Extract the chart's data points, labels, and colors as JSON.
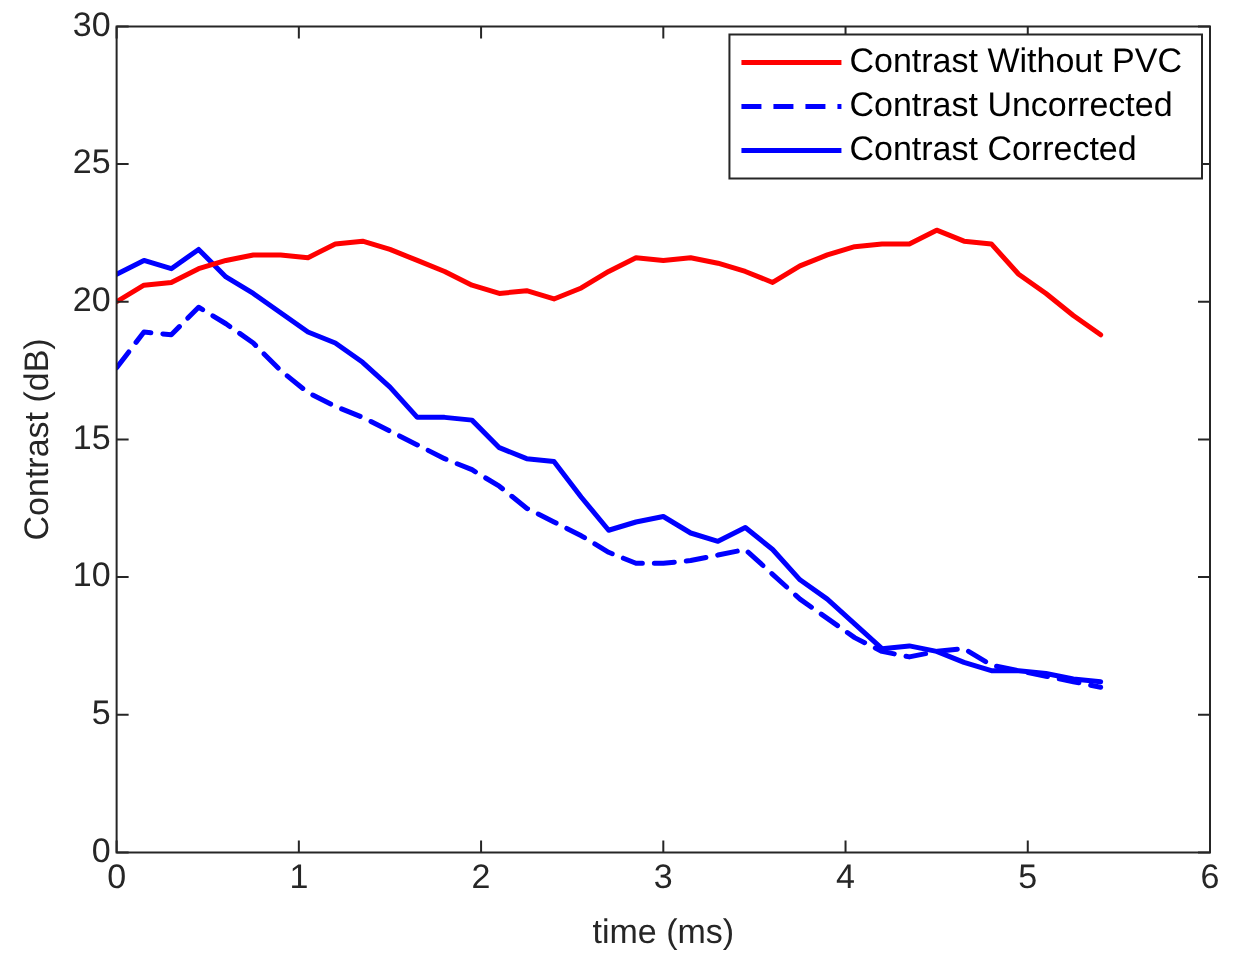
{
  "chart_data": {
    "type": "line",
    "xlabel": "time (ms)",
    "ylabel": "Contrast (dB)",
    "x": [
      0,
      0.15,
      0.3,
      0.45,
      0.6,
      0.75,
      0.9,
      1.05,
      1.2,
      1.35,
      1.5,
      1.65,
      1.8,
      1.95,
      2.1,
      2.25,
      2.4,
      2.55,
      2.7,
      2.85,
      3.0,
      3.15,
      3.3,
      3.45,
      3.6,
      3.75,
      3.9,
      4.05,
      4.2,
      4.35,
      4.5,
      4.65,
      4.8,
      4.95,
      5.1,
      5.25,
      5.4
    ],
    "xlim": [
      0,
      6
    ],
    "xticks": [
      0,
      1,
      2,
      3,
      4,
      5,
      6
    ],
    "ylim": [
      0,
      30
    ],
    "yticks": [
      0,
      5,
      10,
      15,
      20,
      25,
      30
    ],
    "grid": false,
    "legend": "top right",
    "marker": "none",
    "series": [
      {
        "name": "Contrast Without PVC",
        "color": "#ff0000",
        "line_style": "solid",
        "values": [
          20.0,
          20.6,
          20.7,
          21.2,
          21.5,
          21.7,
          21.7,
          21.6,
          22.1,
          22.2,
          21.9,
          21.5,
          21.1,
          20.6,
          20.3,
          20.4,
          20.1,
          20.5,
          21.1,
          21.6,
          21.5,
          21.6,
          21.4,
          21.1,
          20.7,
          21.3,
          21.7,
          22.0,
          22.1,
          22.1,
          22.6,
          22.2,
          22.1,
          21.0,
          20.3,
          19.5,
          18.8
        ]
      },
      {
        "name": "Contrast Uncorrected",
        "color": "#0000ff",
        "line_style": "dashed",
        "values": [
          17.6,
          18.9,
          18.8,
          19.8,
          19.2,
          18.5,
          17.5,
          16.7,
          16.2,
          15.8,
          15.3,
          14.8,
          14.3,
          13.9,
          13.3,
          12.5,
          12.0,
          11.5,
          10.9,
          10.5,
          10.5,
          10.6,
          10.8,
          11.0,
          10.1,
          9.2,
          8.5,
          7.8,
          7.3,
          7.1,
          7.3,
          7.4,
          6.8,
          6.6,
          6.4,
          6.2,
          6.0
        ]
      },
      {
        "name": "Contrast Corrected",
        "color": "#0000ff",
        "line_style": "solid",
        "values": [
          21.0,
          21.5,
          21.2,
          21.9,
          20.9,
          20.3,
          19.6,
          18.9,
          18.5,
          17.8,
          16.9,
          15.8,
          15.8,
          15.7,
          14.7,
          14.3,
          14.2,
          12.9,
          11.7,
          12.0,
          12.2,
          11.6,
          11.3,
          11.8,
          11.0,
          9.9,
          9.2,
          8.3,
          7.4,
          7.5,
          7.3,
          6.9,
          6.6,
          6.6,
          6.5,
          6.3,
          6.2
        ]
      }
    ]
  }
}
